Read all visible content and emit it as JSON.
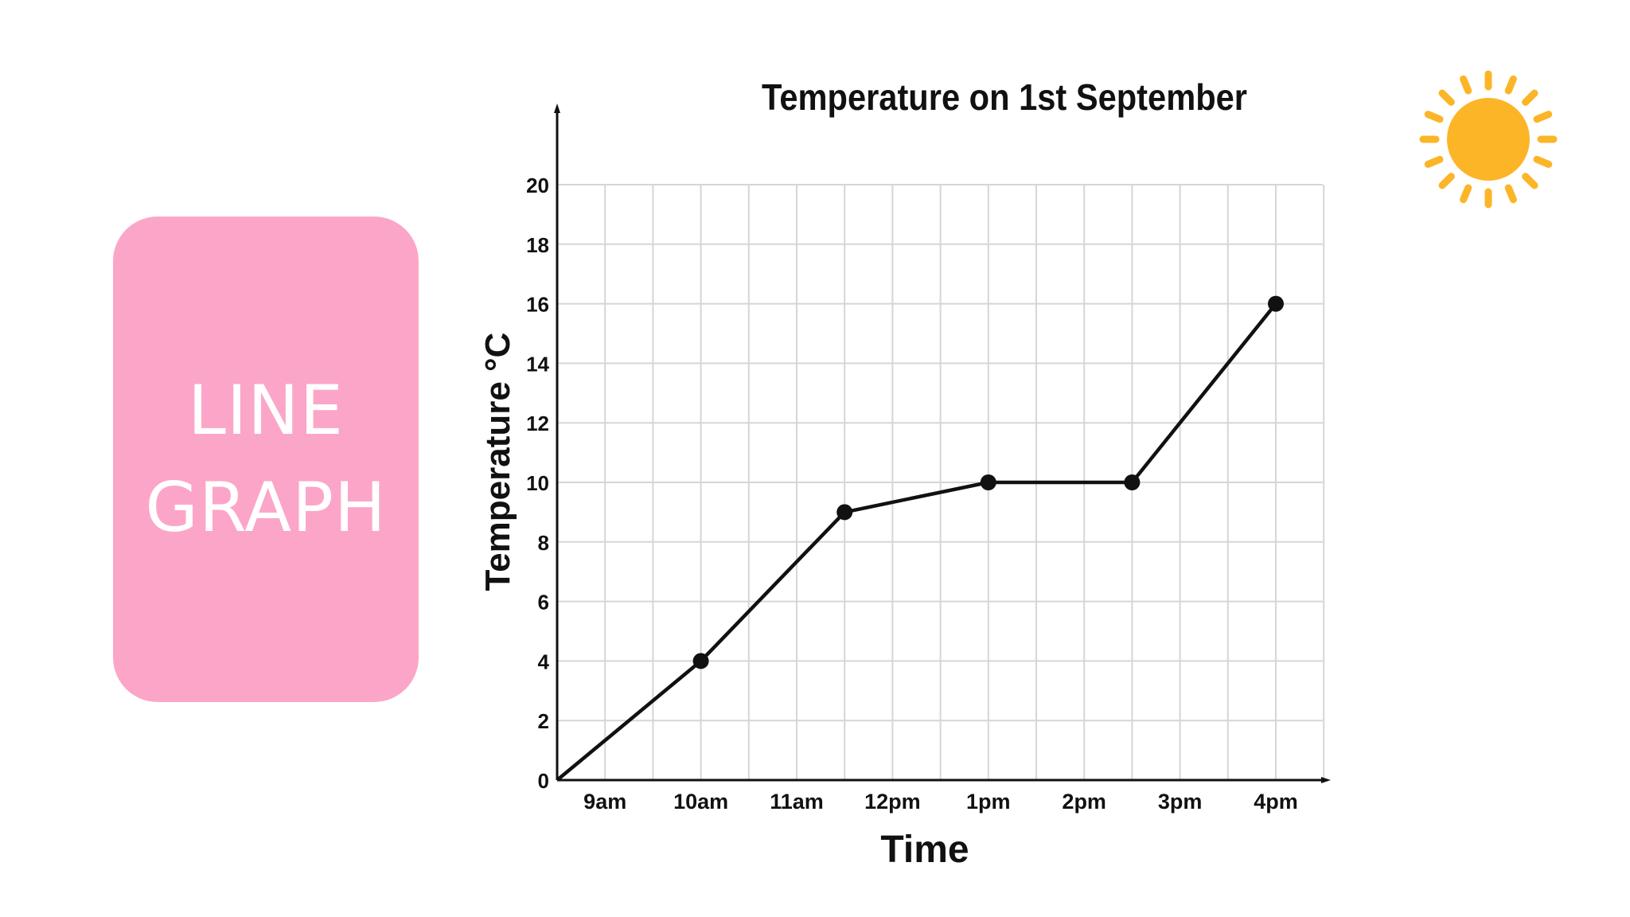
{
  "slide": {
    "card_line1": "LINE",
    "card_line2": "GRAPH",
    "card_color": "#fba6c8"
  },
  "decoration": {
    "icon": "sun-icon",
    "color": "#fbb527"
  },
  "chart_data": {
    "type": "line",
    "title": "Temperature on 1st September",
    "xlabel": "Time",
    "ylabel": "Temperature °C",
    "x_tick_labels": [
      "9am",
      "10am",
      "11am",
      "12pm",
      "1pm",
      "2pm",
      "3pm",
      "4pm"
    ],
    "y_ticks": [
      0,
      2,
      4,
      6,
      8,
      10,
      12,
      14,
      16,
      18,
      20
    ],
    "ylim": [
      0,
      20
    ],
    "grid": true,
    "series": [
      {
        "points": [
          {
            "x": "10am",
            "y": 4
          },
          {
            "x": "11:30am",
            "y": 9
          },
          {
            "x": "1pm",
            "y": 10
          },
          {
            "x": "2:30pm",
            "y": 10
          },
          {
            "x": "4pm",
            "y": 16
          }
        ]
      }
    ],
    "line_color": "#111111"
  }
}
